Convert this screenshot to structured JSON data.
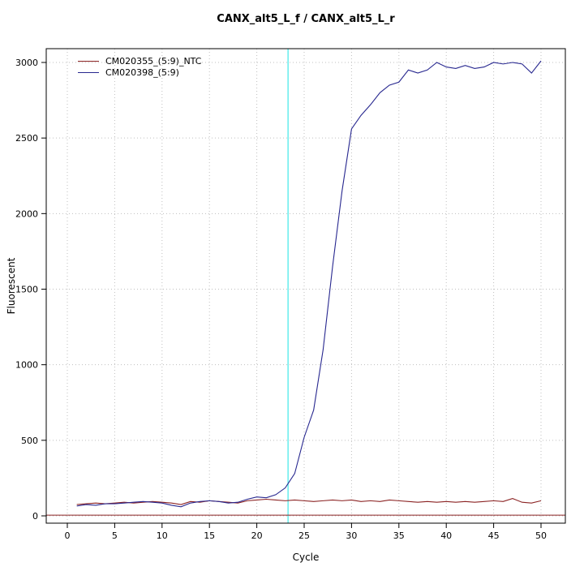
{
  "chart_data": {
    "type": "line",
    "title": "CANX_alt5_L_f / CANX_alt5_L_r",
    "xlabel": "Cycle",
    "ylabel": "Fluorescent",
    "xlim": [
      -2.2,
      52.6
    ],
    "ylim": [
      -60,
      3100
    ],
    "x_ticks": [
      0,
      5,
      10,
      15,
      20,
      25,
      30,
      35,
      40,
      45,
      50
    ],
    "y_ticks": [
      0,
      500,
      1000,
      1500,
      2000,
      2500,
      3000
    ],
    "grid": true,
    "grid_style": "dotted",
    "legend_position": "top-left",
    "threshold_line_y": 5,
    "ct_marker_x": 23.3,
    "colors": {
      "ntc_series": "#8b2323",
      "sample_series": "#27278f",
      "ct_marker": "#66eded",
      "grid": "#bfbfbf",
      "axis": "#000000",
      "background": "#ffffff"
    },
    "x": [
      1,
      2,
      3,
      4,
      5,
      6,
      7,
      8,
      9,
      10,
      11,
      12,
      13,
      14,
      15,
      16,
      17,
      18,
      19,
      20,
      21,
      22,
      23,
      24,
      25,
      26,
      27,
      28,
      29,
      30,
      31,
      32,
      33,
      34,
      35,
      36,
      37,
      38,
      39,
      40,
      41,
      42,
      43,
      44,
      45,
      46,
      47,
      48,
      49,
      50
    ],
    "series": [
      {
        "name": "CM020355_(5:9)_NTC",
        "color": "#8b2323",
        "values": [
          75,
          80,
          85,
          80,
          85,
          90,
          85,
          90,
          95,
          90,
          85,
          75,
          95,
          90,
          100,
          95,
          90,
          85,
          100,
          105,
          110,
          105,
          100,
          105,
          100,
          95,
          100,
          105,
          100,
          105,
          95,
          100,
          95,
          105,
          100,
          95,
          90,
          95,
          90,
          95,
          90,
          95,
          90,
          95,
          100,
          95,
          115,
          90,
          85,
          100
        ]
      },
      {
        "name": "CM020398_(5:9)",
        "color": "#27278f",
        "values": [
          65,
          75,
          70,
          80,
          80,
          85,
          90,
          95,
          90,
          85,
          70,
          60,
          85,
          95,
          100,
          95,
          85,
          90,
          110,
          125,
          120,
          140,
          185,
          280,
          520,
          700,
          1100,
          1650,
          2150,
          2560,
          2650,
          2720,
          2800,
          2850,
          2870,
          2950,
          2930,
          2950,
          3000,
          2970,
          2960,
          2980,
          2960,
          2970,
          3000,
          2990,
          3000,
          2990,
          2930,
          3010
        ]
      }
    ]
  }
}
